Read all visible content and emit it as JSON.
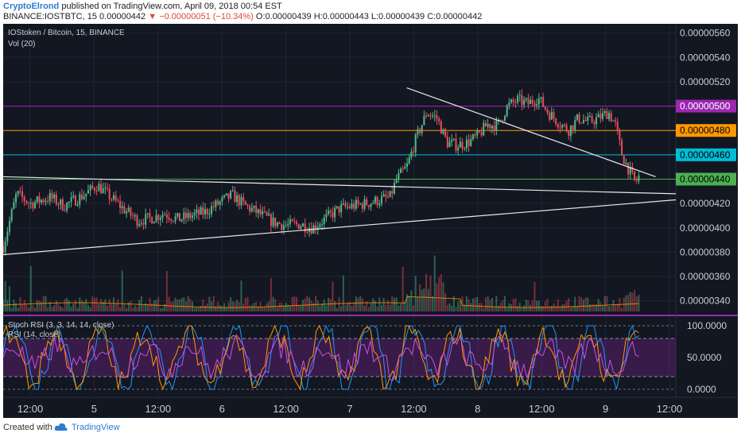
{
  "header": {
    "author": "CryptoElrond",
    "published": "published on TradingView.com, April 09, 2018 00:54 EST",
    "symbol": "BINANCE:IOSTBTC, 15",
    "price": "0.00000442",
    "change": "−0.00000051 (−10.34%)",
    "ohlc": "O:0.00000439 H:0.00000443 L:0.00000439 C:0.00000442"
  },
  "legend": {
    "main": "IOStoken / Bitcoin, 15, BINANCE",
    "vol": "Vol (20)",
    "stoch": "Stoch RSI (3, 3, 14, 14, close)",
    "rsi": "RSI (14, close)"
  },
  "footer": {
    "created_with": "Created with",
    "brand": "TradingView"
  },
  "colors": {
    "bg": "#131722",
    "up": "#53b987",
    "down": "#eb4d5c",
    "purple": "#9c27b0",
    "orange": "#ff9800",
    "cyan": "#00bcd4",
    "green": "#4caf50"
  },
  "chart_data": {
    "type": "candlestick",
    "price_axis": {
      "range": [
        3.3e-06,
        5.65e-06
      ],
      "ticks": [
        "0.00000560",
        "0.00000540",
        "0.00000520",
        "0.00000500",
        "0.00000480",
        "0.00000460",
        "0.00000440",
        "0.00000420",
        "0.00000400",
        "0.00000380",
        "0.00000360",
        "0.00000340"
      ]
    },
    "oscillator_axis": {
      "range": [
        -10,
        110
      ],
      "ticks": [
        "100.0000",
        "50.0000",
        "0.0000"
      ]
    },
    "x_axis": {
      "ticks": [
        "12:00",
        "5",
        "12:00",
        "6",
        "12:00",
        "7",
        "12:00",
        "8",
        "12:00",
        "9",
        "12:00"
      ]
    },
    "horizontal_levels": [
      {
        "value": 5e-06,
        "label": "0.00000500",
        "color": "#9c27b0"
      },
      {
        "value": 4.8e-06,
        "label": "0.00000480",
        "color": "#ff9800"
      },
      {
        "value": 4.6e-06,
        "label": "0.00000460",
        "color": "#00bcd4"
      },
      {
        "value": 4.4e-06,
        "label": "0.00000440",
        "color": "#4caf50"
      }
    ],
    "trend_lines": [
      {
        "x1": 0.0,
        "y1": 4.42e-06,
        "x2": 1.0,
        "y2": 4.28e-06
      },
      {
        "x1": 0.0,
        "y1": 3.78e-06,
        "x2": 1.0,
        "y2": 4.23e-06
      },
      {
        "x1": 0.6,
        "y1": 5.15e-06,
        "x2": 0.97,
        "y2": 4.42e-06
      }
    ],
    "close_path": [
      [
        0.0,
        3.85e-06
      ],
      [
        0.02,
        4.28e-06
      ],
      [
        0.04,
        4.2e-06
      ],
      [
        0.07,
        4.25e-06
      ],
      [
        0.09,
        4.18e-06
      ],
      [
        0.12,
        4.27e-06
      ],
      [
        0.14,
        4.35e-06
      ],
      [
        0.16,
        4.25e-06
      ],
      [
        0.18,
        4.15e-06
      ],
      [
        0.2,
        4.06e-06
      ],
      [
        0.22,
        4.08e-06
      ],
      [
        0.24,
        4.12e-06
      ],
      [
        0.26,
        4.07e-06
      ],
      [
        0.28,
        4.1e-06
      ],
      [
        0.3,
        4.13e-06
      ],
      [
        0.32,
        4.2e-06
      ],
      [
        0.34,
        4.27e-06
      ],
      [
        0.36,
        4.18e-06
      ],
      [
        0.38,
        4.12e-06
      ],
      [
        0.4,
        4.05e-06
      ],
      [
        0.42,
        4.02e-06
      ],
      [
        0.44,
        4.03e-06
      ],
      [
        0.46,
        4e-06
      ],
      [
        0.48,
        4.08e-06
      ],
      [
        0.5,
        4.16e-06
      ],
      [
        0.52,
        4.18e-06
      ],
      [
        0.54,
        4.2e-06
      ],
      [
        0.56,
        4.23e-06
      ],
      [
        0.575,
        4.25e-06
      ],
      [
        0.585,
        4.4e-06
      ],
      [
        0.6,
        4.5e-06
      ],
      [
        0.615,
        4.75e-06
      ],
      [
        0.63,
        4.95e-06
      ],
      [
        0.645,
        4.9e-06
      ],
      [
        0.66,
        4.7e-06
      ],
      [
        0.675,
        4.68e-06
      ],
      [
        0.69,
        4.7e-06
      ],
      [
        0.705,
        4.75e-06
      ],
      [
        0.72,
        4.85e-06
      ],
      [
        0.735,
        4.84e-06
      ],
      [
        0.75,
        5e-06
      ],
      [
        0.765,
        5.05e-06
      ],
      [
        0.78,
        5.02e-06
      ],
      [
        0.795,
        5.07e-06
      ],
      [
        0.81,
        4.95e-06
      ],
      [
        0.825,
        4.87e-06
      ],
      [
        0.84,
        4.8e-06
      ],
      [
        0.855,
        4.9e-06
      ],
      [
        0.87,
        4.87e-06
      ],
      [
        0.885,
        4.9e-06
      ],
      [
        0.9,
        4.95e-06
      ],
      [
        0.91,
        4.85e-06
      ],
      [
        0.92,
        4.6e-06
      ],
      [
        0.93,
        4.48e-06
      ],
      [
        0.94,
        4.37e-06
      ],
      [
        0.945,
        4.42e-06
      ]
    ],
    "series": [
      {
        "name": "Vol (20)"
      },
      {
        "name": "Stoch RSI (3, 3, 14, 14, close)"
      },
      {
        "name": "RSI (14, close)"
      }
    ],
    "last_price": 4.42e-06
  }
}
